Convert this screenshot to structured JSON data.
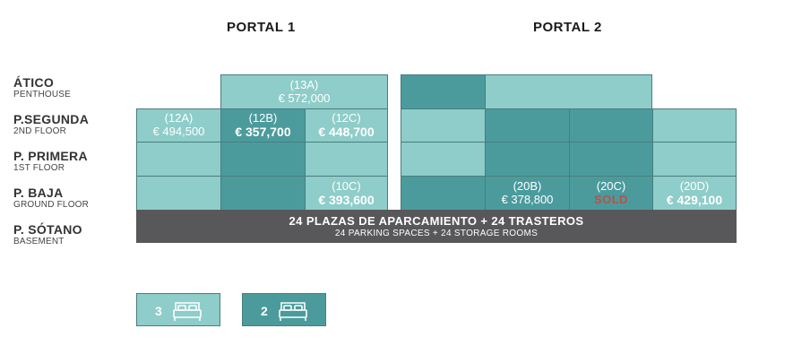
{
  "portals": [
    "PORTAL 1",
    "PORTAL 2"
  ],
  "floors": [
    {
      "name": "ÁTICO",
      "sub": "PENTHOUSE"
    },
    {
      "name": "P.SEGUNDA",
      "sub": "2ND FLOOR"
    },
    {
      "name": "P. PRIMERA",
      "sub": "1ST FLOOR"
    },
    {
      "name": "P. BAJA",
      "sub": "GROUND FLOOR"
    },
    {
      "name": "P. SÓTANO",
      "sub": "BASEMENT"
    }
  ],
  "units": {
    "u13A": {
      "label": "(13A)",
      "price": "€ 572,000"
    },
    "u12A": {
      "label": "(12A)",
      "price": "€ 494,500"
    },
    "u12B": {
      "label": "(12B)",
      "price": "€ 357,700"
    },
    "u12C": {
      "label": "(12C)",
      "price": "€ 448,700"
    },
    "u10C": {
      "label": "(10C)",
      "price": "€ 393,600"
    },
    "u20B": {
      "label": "(20B)",
      "price": "€ 378,800"
    },
    "u20C": {
      "label": "(20C)",
      "price": "SOLD"
    },
    "u20D": {
      "label": "(20D)",
      "price": "€ 429,100"
    }
  },
  "basement": {
    "main": "24 PLAZAS DE APARCAMIENTO + 24 TRASTEROS",
    "sub": "24 PARKING SPACES + 24 STORAGE ROOMS"
  },
  "legend": [
    {
      "count": "3",
      "icon": "bed-icon",
      "color": "#8ecdc9"
    },
    {
      "count": "2",
      "icon": "bed-icon",
      "color": "#4b9b9d"
    }
  ],
  "colors": {
    "three_bedroom": "#8ecdc9",
    "two_bedroom": "#4b9b9d",
    "basement": "#58585a",
    "sold": "#b5534a"
  }
}
